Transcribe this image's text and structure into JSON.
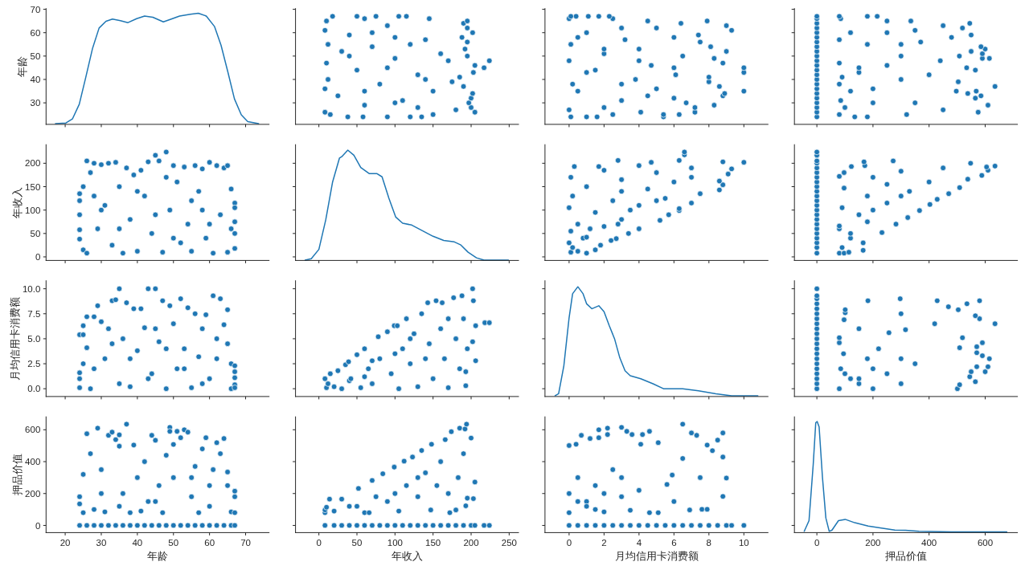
{
  "chart_data": [
    {
      "type": "line",
      "ylabel": "年龄",
      "color": "#1f77b4",
      "x": [
        17.3,
        20.2,
        22.0,
        23.9,
        25.7,
        27.6,
        29.4,
        31.3,
        33.1,
        35.3,
        37.4,
        39.8,
        42.0,
        44.3,
        47.2,
        49.4,
        51.7,
        54.7,
        56.9,
        59.1,
        61.4,
        63.2,
        65.1,
        66.9,
        68.8,
        70.6,
        73.6
      ],
      "values": [
        21.1,
        21.4,
        23.1,
        29.4,
        40.9,
        53.4,
        62.0,
        64.9,
        65.8,
        65.1,
        64.3,
        66.0,
        67.1,
        66.6,
        64.6,
        65.8,
        67.1,
        67.9,
        68.3,
        67.1,
        62.6,
        54.6,
        43.1,
        31.7,
        24.9,
        22.0,
        21.1
      ],
      "xlim": [
        14.7,
        76.5
      ],
      "xticks": [
        20,
        30,
        40,
        50,
        60,
        70
      ],
      "ylim": [
        20.8,
        70.3
      ],
      "yticks": [
        30,
        40,
        50,
        60,
        70
      ],
      "tick_labels": "y"
    },
    {
      "type": "scatter",
      "color": "#1f77b4",
      "marker": "circle",
      "x": [
        135,
        120,
        90,
        58,
        38,
        150,
        15,
        205,
        8,
        180,
        200,
        130,
        60,
        197,
        100,
        110,
        200,
        25,
        202,
        150,
        60,
        8,
        190,
        80,
        175,
        12,
        140,
        185,
        130,
        203,
        50,
        217,
        90,
        205,
        10,
        224,
        170,
        100,
        195,
        40,
        160,
        30,
        192,
        70,
        12,
        120,
        195,
        140,
        188,
        100,
        40,
        202,
        70,
        8,
        195,
        90,
        190,
        195,
        10,
        145,
        60,
        115,
        105,
        75,
        50,
        18
      ],
      "values": [
        24,
        24,
        24,
        24,
        24,
        25,
        25,
        26,
        26,
        27,
        28,
        28,
        29,
        30,
        30,
        31,
        32,
        33,
        34,
        35,
        35,
        36,
        37,
        38,
        39,
        40,
        40,
        41,
        42,
        43,
        44,
        45,
        45,
        46,
        47,
        48,
        48,
        49,
        50,
        50,
        51,
        52,
        53,
        54,
        55,
        55,
        56,
        57,
        58,
        58,
        59,
        60,
        60,
        61,
        62,
        63,
        64,
        65,
        65,
        66,
        66,
        67,
        67,
        67,
        67,
        67
      ],
      "xlim": [
        -30.7,
        262.3
      ],
      "xticks": [
        0,
        50,
        100,
        150,
        200,
        250
      ],
      "ylim": [
        20.8,
        70.3
      ],
      "yticks": [
        30,
        40,
        50,
        60,
        70
      ],
      "tick_labels": false
    },
    {
      "type": "scatter",
      "color": "#1f77b4",
      "marker": "circle",
      "x": [
        5.4,
        1.6,
        1.0,
        0.1,
        5.4,
        6.3,
        2.5,
        7.2,
        4.1,
        0.0,
        7.2,
        2.0,
        8.3,
        6.7,
        3.0,
        6.0,
        8.8,
        4.5,
        8.9,
        10.0,
        0.5,
        5.0,
        8.6,
        0.2,
        3.0,
        8.0,
        3.8,
        8.0,
        6.1,
        10.0,
        1.0,
        1.5,
        10.0,
        6.0,
        4.7,
        8.8,
        0.0,
        4.0,
        8.3,
        6.5,
        2.0,
        9.0,
        4.0,
        2.0,
        8.1,
        0.1,
        7.5,
        3.2,
        6.0,
        0.5,
        7.4,
        1.0,
        9.3,
        5.0,
        3.0,
        9.0,
        6.4,
        7.9,
        4.5,
        2.5,
        0.0,
        2.3,
        1.7,
        1.1,
        0.4,
        0.1
      ],
      "values": [
        24,
        24,
        24,
        24,
        25,
        25,
        25,
        26,
        26,
        27,
        28,
        28,
        29,
        30,
        31,
        32,
        33,
        33,
        34,
        35,
        35,
        36,
        37,
        38,
        38,
        39,
        40,
        41,
        42,
        43,
        43,
        44,
        45,
        45,
        46,
        47,
        48,
        48,
        49,
        50,
        51,
        52,
        53,
        53,
        54,
        55,
        56,
        57,
        58,
        58,
        59,
        60,
        61,
        62,
        62,
        63,
        64,
        65,
        65,
        66,
        66,
        67,
        67,
        67,
        67,
        67
      ],
      "xlim": [
        -1.38,
        11.38
      ],
      "xticks": [
        0,
        2,
        4,
        6,
        8,
        10
      ],
      "ylim": [
        20.8,
        70.3
      ],
      "yticks": [
        30,
        40,
        50,
        60,
        70
      ],
      "tick_labels": false
    },
    {
      "type": "scatter",
      "color": "#1f77b4",
      "marker": "circle",
      "x": [
        0,
        0,
        0,
        0,
        0,
        0,
        0,
        0,
        0,
        0,
        0,
        0,
        0,
        0,
        0,
        0,
        0,
        0,
        0,
        0,
        0,
        0,
        0,
        180,
        135,
        320,
        80,
        575,
        450,
        100,
        610,
        350,
        200,
        85,
        565,
        585,
        538,
        568,
        497,
        120,
        200,
        635,
        80,
        504,
        300,
        90,
        400,
        150,
        565,
        534,
        150,
        250,
        80,
        440,
        615,
        590,
        508,
        300,
        590,
        550,
        600,
        585,
        180,
        300,
        370,
        80,
        480,
        550,
        250,
        120,
        350,
        519,
        450,
        545,
        335,
        250,
        85,
        215,
        180,
        80
      ],
      "values": [
        24,
        26,
        28,
        30,
        32,
        34,
        36,
        38,
        40,
        42,
        44,
        46,
        48,
        50,
        52,
        54,
        56,
        58,
        60,
        62,
        64,
        66,
        67,
        24,
        24,
        25,
        25,
        26,
        27,
        28,
        29,
        30,
        30,
        31,
        32,
        33,
        34,
        35,
        35,
        35,
        36,
        37,
        38,
        39,
        40,
        41,
        42,
        43,
        44,
        45,
        45,
        46,
        47,
        48,
        49,
        49,
        50,
        50,
        51,
        52,
        53,
        54,
        55,
        55,
        56,
        57,
        58,
        59,
        60,
        60,
        61,
        62,
        63,
        64,
        65,
        65,
        66,
        67,
        67,
        67
      ],
      "xlim": [
        -80,
        715
      ],
      "xticks": [
        0,
        200,
        400,
        600
      ],
      "ylim": [
        20.8,
        70.3
      ],
      "yticks": [
        30,
        40,
        50,
        60,
        70
      ],
      "tick_labels": false
    },
    {
      "type": "scatter",
      "ylabel": "年收入",
      "color": "#1f77b4",
      "marker": "circle",
      "x": [
        24,
        24,
        24,
        24,
        24,
        25,
        25,
        26,
        26,
        27,
        28,
        28,
        29,
        30,
        30,
        31,
        32,
        33,
        34,
        35,
        35,
        36,
        37,
        38,
        39,
        40,
        40,
        41,
        42,
        43,
        44,
        45,
        45,
        46,
        47,
        48,
        48,
        49,
        50,
        50,
        51,
        52,
        53,
        54,
        55,
        55,
        56,
        57,
        58,
        58,
        59,
        60,
        60,
        61,
        62,
        63,
        64,
        65,
        65,
        66,
        66,
        67,
        67,
        67,
        67,
        67
      ],
      "values": [
        135,
        120,
        90,
        58,
        38,
        150,
        15,
        205,
        8,
        180,
        200,
        130,
        60,
        197,
        100,
        110,
        200,
        25,
        202,
        150,
        60,
        8,
        190,
        80,
        175,
        12,
        140,
        185,
        130,
        203,
        50,
        217,
        90,
        205,
        10,
        224,
        170,
        100,
        195,
        40,
        160,
        30,
        192,
        70,
        12,
        120,
        195,
        140,
        188,
        100,
        40,
        202,
        70,
        8,
        195,
        90,
        190,
        195,
        10,
        145,
        60,
        115,
        105,
        75,
        50,
        18
      ],
      "xlim": [
        14.7,
        76.5
      ],
      "xticks": [
        20,
        30,
        40,
        50,
        60,
        70
      ],
      "ylim": [
        -7.6,
        239.7
      ],
      "yticks": [
        0,
        50,
        100,
        150,
        200
      ],
      "tick_labels": "y"
    },
    {
      "type": "line",
      "color": "#1f77b4",
      "x": [
        -18,
        -10,
        0,
        9,
        18,
        27,
        30,
        38,
        46,
        55,
        66,
        76,
        83,
        92,
        101,
        110,
        122,
        136,
        150,
        164,
        178,
        186,
        196,
        207,
        217,
        249
      ],
      "values": [
        -7,
        -4,
        16,
        79,
        160,
        211,
        214,
        228,
        217,
        191,
        178,
        178,
        171,
        125,
        85,
        72,
        68,
        56,
        44,
        35,
        32,
        26,
        10,
        -2,
        -7,
        -7
      ],
      "xlim": [
        -30.7,
        262.3
      ],
      "xticks": [
        0,
        50,
        100,
        150,
        200,
        250
      ],
      "ylim": [
        -7.6,
        239.7
      ],
      "yticks": [
        0,
        50,
        100,
        150,
        200
      ],
      "tick_labels": false
    },
    {
      "type": "scatter",
      "color": "#1f77b4",
      "marker": "circle",
      "x": [
        1.0,
        0.1,
        0.5,
        1.5,
        0.2,
        1.8,
        0.0,
        2.4,
        2.7,
        0.8,
        1.0,
        3.4,
        0.1,
        4.0,
        1.2,
        2.0,
        0.5,
        2.8,
        5.2,
        3.0,
        5.7,
        1.5,
        6.3,
        3.5,
        6.3,
        0.0,
        4.0,
        7.0,
        2.5,
        5.0,
        5.5,
        0.2,
        7.5,
        3.0,
        8.6,
        4.5,
        1.0,
        8.8,
        6.0,
        8.6,
        3.0,
        0.1,
        7.0,
        9.1,
        5.0,
        2.0,
        9.3,
        7.0,
        0.3,
        1.7,
        4.0,
        10.0,
        8.8,
        4.7,
        6.3,
        2.8,
        6.6,
        6.6
      ],
      "values": [
        8,
        10,
        12,
        15,
        20,
        25,
        30,
        35,
        39,
        40,
        42,
        50,
        55,
        60,
        60,
        65,
        70,
        70,
        78,
        80,
        90,
        95,
        99,
        100,
        103,
        105,
        110,
        115,
        120,
        120,
        125,
        130,
        135,
        140,
        143,
        145,
        150,
        154,
        160,
        162,
        165,
        170,
        170,
        177,
        180,
        185,
        188,
        190,
        193,
        193,
        195,
        202,
        203,
        202,
        206,
        206,
        218,
        224
      ],
      "xlim": [
        -1.38,
        11.38
      ],
      "xticks": [
        0,
        2,
        4,
        6,
        8,
        10
      ],
      "ylim": [
        -7.6,
        239.7
      ],
      "yticks": [
        0,
        50,
        100,
        150,
        200
      ],
      "tick_labels": false
    },
    {
      "type": "scatter",
      "color": "#1f77b4",
      "marker": "circle",
      "x": [
        0,
        0,
        0,
        0,
        0,
        0,
        0,
        0,
        0,
        0,
        0,
        0,
        0,
        0,
        0,
        0,
        0,
        0,
        0,
        0,
        0,
        0,
        0,
        80,
        97,
        114,
        165,
        90,
        165,
        120,
        120,
        232,
        80,
        80,
        282,
        180,
        324,
        150,
        366,
        200,
        90,
        403,
        250,
        429,
        180,
        300,
        470,
        330,
        97,
        509,
        250,
        400,
        538,
        200,
        80,
        588,
        97,
        300,
        610,
        450,
        605,
        123,
        635,
        171,
        548,
        168,
        272
      ],
      "values": [
        8,
        20,
        30,
        40,
        50,
        60,
        70,
        80,
        90,
        100,
        110,
        120,
        130,
        140,
        150,
        160,
        170,
        180,
        190,
        200,
        205,
        217,
        224,
        8,
        8,
        10,
        14,
        20,
        30,
        40,
        50,
        52,
        60,
        66,
        70,
        75,
        84,
        90,
        99,
        100,
        105,
        112,
        115,
        123,
        130,
        130,
        135,
        140,
        147,
        148,
        155,
        160,
        166,
        170,
        172,
        174,
        180,
        183,
        185,
        190,
        192,
        193,
        194,
        195,
        200,
        203,
        205
      ],
      "xlim": [
        -80,
        715
      ],
      "xticks": [
        0,
        200,
        400,
        600
      ],
      "ylim": [
        -7.6,
        239.7
      ],
      "yticks": [
        0,
        50,
        100,
        150,
        200
      ],
      "tick_labels": false
    },
    {
      "type": "scatter",
      "ylabel": "月均信用卡消费额",
      "color": "#1f77b4",
      "marker": "circle",
      "x": [
        24,
        24,
        24,
        24,
        25,
        25,
        25,
        26,
        26,
        27,
        28,
        28,
        29,
        30,
        31,
        32,
        33,
        33,
        34,
        35,
        35,
        36,
        37,
        38,
        38,
        39,
        40,
        41,
        42,
        43,
        43,
        44,
        45,
        45,
        46,
        47,
        48,
        48,
        49,
        50,
        51,
        52,
        53,
        53,
        54,
        55,
        56,
        57,
        58,
        58,
        59,
        60,
        61,
        62,
        62,
        63,
        64,
        65,
        65,
        66,
        66,
        67,
        67,
        67,
        67,
        67
      ],
      "values": [
        5.4,
        1.6,
        1.0,
        0.1,
        5.4,
        6.3,
        2.5,
        7.2,
        4.1,
        0.0,
        7.2,
        2.0,
        8.3,
        6.7,
        3.0,
        6.0,
        8.8,
        4.5,
        8.9,
        10.0,
        0.5,
        5.0,
        8.6,
        0.2,
        3.0,
        8.0,
        3.8,
        8.0,
        6.1,
        10.0,
        1.0,
        1.5,
        10.0,
        6.0,
        4.7,
        8.8,
        0.0,
        4.0,
        8.3,
        6.5,
        2.0,
        9.0,
        4.0,
        2.0,
        8.1,
        0.1,
        7.5,
        3.2,
        6.0,
        0.5,
        7.4,
        1.0,
        9.3,
        5.0,
        3.0,
        9.0,
        6.4,
        7.9,
        4.5,
        2.5,
        0.0,
        2.3,
        1.7,
        1.1,
        0.4,
        0.1
      ],
      "xlim": [
        14.7,
        76.5
      ],
      "xticks": [
        20,
        30,
        40,
        50,
        60,
        70
      ],
      "ylim": [
        -0.78,
        10.8
      ],
      "yticks": [
        {
          "value": 0,
          "label": "0.0"
        },
        {
          "value": 2.5,
          "label": "2.5"
        },
        {
          "value": 5,
          "label": "5.0"
        },
        {
          "value": 7.5,
          "label": "7.5"
        },
        {
          "value": 10,
          "label": "10.0"
        }
      ],
      "tick_labels": "y"
    },
    {
      "type": "scatter",
      "color": "#1f77b4",
      "marker": "circle",
      "x": [
        8,
        10,
        12,
        15,
        20,
        25,
        30,
        35,
        39,
        40,
        42,
        50,
        55,
        60,
        60,
        65,
        70,
        70,
        78,
        80,
        90,
        95,
        99,
        100,
        103,
        105,
        110,
        115,
        120,
        120,
        125,
        130,
        135,
        140,
        143,
        145,
        150,
        154,
        160,
        162,
        165,
        170,
        170,
        177,
        180,
        185,
        188,
        190,
        193,
        193,
        195,
        202,
        203,
        202,
        206,
        206,
        218,
        224
      ],
      "values": [
        1.0,
        0.1,
        0.5,
        1.5,
        0.2,
        1.8,
        0.0,
        2.4,
        2.7,
        0.8,
        1.0,
        3.4,
        0.1,
        4.0,
        1.2,
        2.0,
        0.5,
        2.8,
        5.2,
        3.0,
        5.7,
        1.5,
        6.3,
        3.5,
        6.3,
        0.0,
        4.0,
        7.0,
        2.5,
        5.0,
        5.5,
        0.2,
        7.5,
        3.0,
        8.6,
        4.5,
        1.0,
        8.8,
        6.0,
        8.6,
        3.0,
        0.1,
        7.0,
        9.1,
        5.0,
        2.0,
        9.3,
        7.0,
        0.3,
        1.7,
        4.0,
        10.0,
        8.8,
        4.7,
        6.3,
        2.8,
        6.6,
        6.6
      ],
      "xlim": [
        -30.7,
        262.3
      ],
      "xticks": [
        0,
        50,
        100,
        150,
        200,
        250
      ],
      "ylim": [
        -0.78,
        10.8
      ],
      "yticks": [
        0,
        2.5,
        5,
        7.5,
        10
      ],
      "tick_labels": false
    },
    {
      "type": "line",
      "color": "#1f77b4",
      "x": [
        -0.8,
        -0.6,
        -0.3,
        0.0,
        0.2,
        0.5,
        0.8,
        1.0,
        1.3,
        1.7,
        2.0,
        2.3,
        2.6,
        2.9,
        3.2,
        3.5,
        4.1,
        4.8,
        5.4,
        6.0,
        6.5,
        7.4,
        8.4,
        9.3,
        10.8
      ],
      "values": [
        -0.7,
        -0.5,
        2.3,
        7.1,
        9.5,
        10.2,
        9.5,
        8.5,
        8.0,
        8.3,
        7.7,
        6.3,
        5.0,
        3.1,
        1.8,
        1.3,
        1.0,
        0.5,
        0.0,
        0.0,
        0.0,
        -0.2,
        -0.5,
        -0.7,
        -0.7
      ],
      "xlim": [
        -1.38,
        11.38
      ],
      "xticks": [
        0,
        2,
        4,
        6,
        8,
        10
      ],
      "ylim": [
        -0.78,
        10.8
      ],
      "yticks": [
        0,
        2.5,
        5,
        7.5,
        10
      ],
      "tick_labels": false
    },
    {
      "type": "scatter",
      "color": "#1f77b4",
      "marker": "circle",
      "x": [
        0,
        0,
        0,
        0,
        0,
        0,
        0,
        0,
        0,
        0,
        0,
        0,
        0,
        0,
        0,
        0,
        0,
        0,
        0,
        0,
        0,
        501,
        200,
        80,
        509,
        300,
        150,
        565,
        150,
        120,
        545,
        250,
        100,
        600,
        550,
        200,
        85,
        610,
        570,
        350,
        615,
        300,
        180,
        590,
        95,
        570,
        220,
        509,
        570,
        590,
        80,
        519,
        80,
        257,
        316,
        150,
        635,
        420,
        97,
        580,
        565,
        300,
        101,
        504,
        101,
        469,
        535,
        580,
        429,
        182,
        297
      ],
      "values": [
        0.0,
        0.5,
        1.0,
        1.5,
        2.0,
        2.5,
        3.0,
        3.5,
        4.0,
        4.5,
        5.0,
        5.5,
        6.0,
        6.5,
        7.0,
        7.5,
        8.0,
        8.5,
        9.0,
        9.3,
        10.0,
        0.0,
        0.0,
        0.0,
        0.4,
        0.5,
        0.5,
        0.7,
        1.0,
        1.0,
        1.2,
        1.5,
        1.5,
        1.7,
        1.7,
        2.0,
        2.0,
        2.2,
        2.2,
        2.5,
        3.0,
        3.0,
        3.0,
        3.3,
        3.5,
        3.6,
        4.0,
        4.1,
        4.2,
        4.6,
        4.6,
        5.1,
        5.1,
        5.6,
        5.9,
        6.0,
        6.5,
        6.5,
        6.9,
        7.0,
        7.3,
        7.5,
        7.6,
        7.9,
        7.9,
        8.2,
        8.5,
        8.8,
        8.8,
        8.8,
        9.0
      ],
      "xlim": [
        -80,
        715
      ],
      "xticks": [
        0,
        200,
        400,
        600
      ],
      "ylim": [
        -0.78,
        10.8
      ],
      "yticks": [
        0,
        2.5,
        5,
        7.5,
        10
      ],
      "tick_labels": false
    },
    {
      "type": "scatter",
      "xlabel": "年龄",
      "ylabel": "押品价值",
      "color": "#1f77b4",
      "marker": "circle",
      "x": [
        24,
        26,
        28,
        30,
        32,
        34,
        36,
        38,
        40,
        42,
        44,
        46,
        48,
        50,
        52,
        54,
        56,
        58,
        60,
        62,
        64,
        66,
        67,
        24,
        24,
        25,
        25,
        26,
        27,
        28,
        29,
        30,
        30,
        31,
        32,
        33,
        34,
        35,
        35,
        35,
        36,
        37,
        38,
        39,
        40,
        41,
        42,
        43,
        44,
        45,
        45,
        46,
        47,
        48,
        49,
        49,
        50,
        50,
        51,
        52,
        53,
        54,
        55,
        55,
        56,
        57,
        58,
        59,
        60,
        60,
        61,
        62,
        63,
        64,
        65,
        65,
        66,
        67,
        67,
        67
      ],
      "values": [
        0,
        0,
        0,
        0,
        0,
        0,
        0,
        0,
        0,
        0,
        0,
        0,
        0,
        0,
        0,
        0,
        0,
        0,
        0,
        0,
        0,
        0,
        0,
        180,
        135,
        320,
        80,
        575,
        450,
        100,
        610,
        350,
        200,
        85,
        565,
        585,
        538,
        568,
        497,
        120,
        200,
        635,
        80,
        504,
        300,
        90,
        400,
        150,
        565,
        534,
        150,
        250,
        80,
        440,
        615,
        590,
        508,
        300,
        590,
        550,
        600,
        585,
        180,
        300,
        370,
        80,
        480,
        550,
        250,
        120,
        350,
        519,
        450,
        545,
        335,
        250,
        85,
        215,
        180,
        80
      ],
      "xlim": [
        14.7,
        76.5
      ],
      "xticks": [
        20,
        30,
        40,
        50,
        60,
        70
      ],
      "ylim": [
        -45,
        681
      ],
      "yticks": [
        0,
        200,
        400,
        600
      ]
    },
    {
      "type": "scatter",
      "xlabel": "年收入",
      "color": "#1f77b4",
      "marker": "circle",
      "x": [
        8,
        20,
        30,
        40,
        50,
        60,
        70,
        80,
        90,
        100,
        110,
        120,
        130,
        140,
        150,
        160,
        170,
        180,
        190,
        200,
        205,
        217,
        224,
        8,
        8,
        10,
        14,
        20,
        30,
        40,
        50,
        52,
        60,
        66,
        70,
        75,
        84,
        90,
        99,
        100,
        105,
        112,
        115,
        123,
        130,
        130,
        135,
        140,
        147,
        148,
        155,
        160,
        166,
        170,
        172,
        174,
        180,
        183,
        185,
        190,
        192,
        193,
        194,
        195,
        200,
        203,
        205
      ],
      "values": [
        0,
        0,
        0,
        0,
        0,
        0,
        0,
        0,
        0,
        0,
        0,
        0,
        0,
        0,
        0,
        0,
        0,
        0,
        0,
        0,
        0,
        0,
        0,
        80,
        97,
        114,
        165,
        90,
        165,
        120,
        120,
        232,
        80,
        80,
        282,
        180,
        324,
        150,
        366,
        200,
        90,
        403,
        250,
        429,
        180,
        300,
        470,
        330,
        97,
        509,
        250,
        400,
        538,
        200,
        80,
        588,
        97,
        300,
        610,
        450,
        605,
        123,
        635,
        171,
        548,
        168,
        272
      ],
      "xlim": [
        -30.7,
        262.3
      ],
      "xticks": [
        0,
        50,
        100,
        150,
        200,
        250
      ],
      "ylim": [
        -45,
        681
      ],
      "yticks": [
        0,
        200,
        400,
        600
      ],
      "tick_labels": "x"
    },
    {
      "type": "scatter",
      "xlabel": "月均信用卡消费额",
      "color": "#1f77b4",
      "marker": "circle",
      "x": [
        0.0,
        0.5,
        1.0,
        1.5,
        2.0,
        2.5,
        3.0,
        3.5,
        4.0,
        4.5,
        5.0,
        5.5,
        6.0,
        6.5,
        7.0,
        7.5,
        8.0,
        8.5,
        9.0,
        9.3,
        10.0,
        0.0,
        0.0,
        0.0,
        0.4,
        0.5,
        0.5,
        0.7,
        1.0,
        1.0,
        1.2,
        1.5,
        1.5,
        1.7,
        1.7,
        2.0,
        2.0,
        2.2,
        2.2,
        2.5,
        3.0,
        3.0,
        3.0,
        3.3,
        3.5,
        3.6,
        4.0,
        4.1,
        4.2,
        4.6,
        4.6,
        5.1,
        5.1,
        5.6,
        5.9,
        6.0,
        6.5,
        6.5,
        6.9,
        7.0,
        7.3,
        7.5,
        7.6,
        7.9,
        7.9,
        8.2,
        8.5,
        8.8,
        8.8,
        8.8,
        9.0
      ],
      "values": [
        0,
        0,
        0,
        0,
        0,
        0,
        0,
        0,
        0,
        0,
        0,
        0,
        0,
        0,
        0,
        0,
        0,
        0,
        0,
        0,
        0,
        501,
        200,
        80,
        509,
        300,
        150,
        565,
        150,
        120,
        545,
        250,
        100,
        600,
        550,
        200,
        85,
        610,
        570,
        350,
        615,
        300,
        180,
        590,
        95,
        570,
        220,
        509,
        570,
        590,
        80,
        519,
        80,
        257,
        316,
        150,
        635,
        420,
        97,
        580,
        565,
        300,
        101,
        504,
        101,
        469,
        535,
        580,
        429,
        182,
        297
      ],
      "xlim": [
        -1.38,
        11.38
      ],
      "xticks": [
        0,
        2,
        4,
        6,
        8,
        10
      ],
      "ylim": [
        -45,
        681
      ],
      "yticks": [
        0,
        200,
        400,
        600
      ],
      "tick_labels": "x"
    },
    {
      "type": "line",
      "xlabel": "押品价值",
      "color": "#1f77b4",
      "x": [
        -45,
        -28,
        -13,
        -4,
        1,
        8,
        20,
        32,
        44,
        54,
        77,
        101,
        135,
        183,
        230,
        278,
        316,
        364,
        479,
        574,
        677
      ],
      "values": [
        -37,
        30,
        383,
        644,
        652,
        618,
        299,
        47,
        -37,
        -29,
        30,
        38,
        17,
        -4,
        -17,
        -29,
        -30,
        -37,
        -40,
        -40,
        -40
      ],
      "xlim": [
        -80,
        715
      ],
      "xticks": [
        0,
        200,
        400,
        600
      ],
      "ylim": [
        -45,
        681
      ],
      "yticks": [
        0,
        200,
        400,
        600
      ],
      "tick_labels": "x"
    }
  ]
}
